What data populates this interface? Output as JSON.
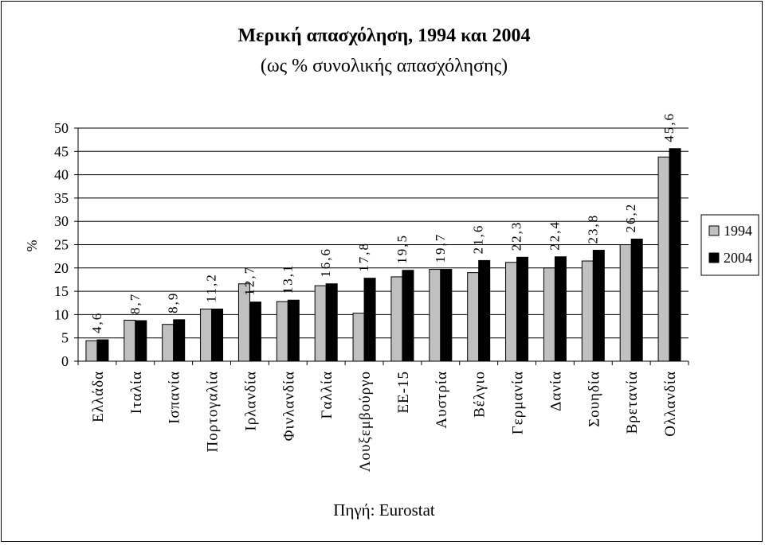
{
  "chart_data": {
    "type": "bar",
    "title": "Μερική απασχόληση, 1994 και 2004",
    "subtitle": "(ως % συνολικής απασχόλησης)",
    "ylabel": "%",
    "xlabel": "",
    "source": "Πηγή: Eurostat",
    "ylim": [
      0,
      50
    ],
    "yticks": [
      0,
      5,
      10,
      15,
      20,
      25,
      30,
      35,
      40,
      45,
      50
    ],
    "grid": true,
    "legend_position": "right",
    "categories": [
      "Ελλάδα",
      "Ιταλία",
      "Ισπανία",
      "Πορτογαλία",
      "Ιρλανδία",
      "Φινλανδία",
      "Γαλλία",
      "Λουξεμβούργο",
      "ΕΕ-15",
      "Αυστρία",
      "Βέλγιο",
      "Γερμανία",
      "Δανία",
      "Σουηδία",
      "Βρετανία",
      "Ολλανδία"
    ],
    "series": [
      {
        "name": "1994",
        "color": "#c0c0c0",
        "values": [
          4.4,
          8.8,
          7.9,
          11.2,
          16.6,
          12.8,
          16.2,
          10.3,
          18.1,
          19.7,
          19.0,
          21.2,
          20.0,
          21.5,
          25.0,
          43.8
        ]
      },
      {
        "name": "2004",
        "color": "#000000",
        "values": [
          4.6,
          8.7,
          8.9,
          11.2,
          12.7,
          13.1,
          16.6,
          17.8,
          19.5,
          19.7,
          21.6,
          22.3,
          22.4,
          23.8,
          26.2,
          45.6
        ]
      }
    ],
    "data_labels": [
      "4,6",
      "8,7",
      "8,9",
      "11,2",
      "12,7",
      "13,1",
      "16,6",
      "17,8",
      "19,5",
      "19,7",
      "21,6",
      "22,3",
      "22,4",
      "23,8",
      "26,2",
      "45,6"
    ]
  }
}
